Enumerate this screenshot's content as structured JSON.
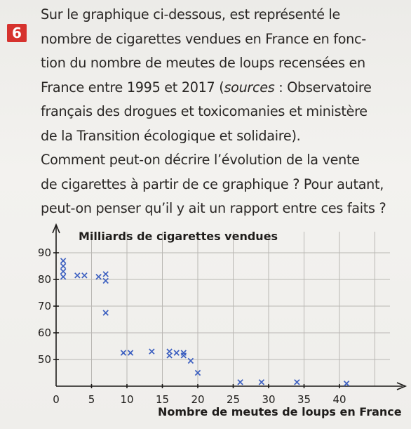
{
  "exercise": {
    "number": "6",
    "text_lines": [
      "Sur le graphique ci-dessous, est représenté le",
      "nombre de cigarettes vendues en France en fonc-",
      "tion du nombre de meutes de loups recensées en",
      "France entre 1995 et 2017 (",
      "français des drogues et toxicomanies et ministère",
      "de la Transition écologique et solidaire).",
      "Comment peut-on décrire l’évolution de la vente",
      "de cigarettes à partir de ce graphique ? Pour autant,",
      "peut-on penser qu’il y ait un rapport entre ces faits ?"
    ],
    "sources_italic": "sources",
    "sources_rest": " : Observatoire"
  },
  "colors": {
    "badge": "#d6322e",
    "points": "#3c5fc0"
  },
  "chart_data": {
    "type": "scatter",
    "ylabel": "Milliards de cigarettes vendues",
    "xlabel": "Nombre de meutes de loups en France",
    "x_ticks": [
      "0",
      "5",
      "10",
      "15",
      "20",
      "25",
      "30",
      "35",
      "40"
    ],
    "y_ticks": [
      "50",
      "60",
      "70",
      "80",
      "90"
    ],
    "xlim": [
      0,
      45
    ],
    "ylim": [
      40,
      92
    ],
    "grid": true,
    "marker": "x",
    "points": [
      {
        "x": 1,
        "y": 87
      },
      {
        "x": 1,
        "y": 85
      },
      {
        "x": 1,
        "y": 83
      },
      {
        "x": 1,
        "y": 81
      },
      {
        "x": 3,
        "y": 81.5
      },
      {
        "x": 4,
        "y": 81.5
      },
      {
        "x": 6,
        "y": 81
      },
      {
        "x": 7,
        "y": 82
      },
      {
        "x": 7,
        "y": 79.5
      },
      {
        "x": 7,
        "y": 67.5
      },
      {
        "x": 9.5,
        "y": 52.5
      },
      {
        "x": 10.5,
        "y": 52.5
      },
      {
        "x": 13.5,
        "y": 53
      },
      {
        "x": 16,
        "y": 53
      },
      {
        "x": 16,
        "y": 51.5
      },
      {
        "x": 17,
        "y": 52.5
      },
      {
        "x": 18,
        "y": 52.5
      },
      {
        "x": 18,
        "y": 51.5
      },
      {
        "x": 19,
        "y": 49.5
      },
      {
        "x": 20,
        "y": 45
      },
      {
        "x": 26,
        "y": 41.5
      },
      {
        "x": 29,
        "y": 41.5
      },
      {
        "x": 34,
        "y": 41.5
      },
      {
        "x": 41,
        "y": 41
      }
    ]
  }
}
